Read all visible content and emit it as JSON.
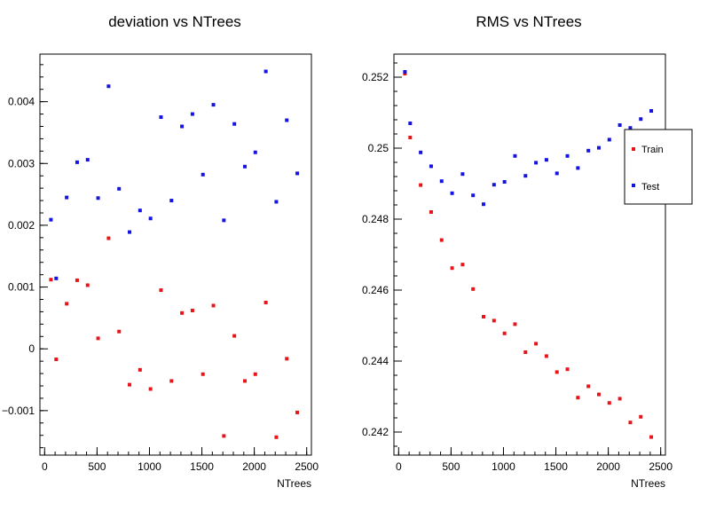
{
  "chart_data": [
    {
      "type": "scatter",
      "title": "deviation vs NTrees",
      "xlabel": "NTrees",
      "ylabel": "",
      "xlim": [
        -45,
        2545
      ],
      "ylim": [
        -0.00172,
        0.00477
      ],
      "xticks": [
        0,
        500,
        1000,
        1500,
        2000,
        2500
      ],
      "xtick_labels": [
        "0",
        "500",
        "1000",
        "1500",
        "2000",
        "2500"
      ],
      "yticks": [
        -0.001,
        0,
        0.001,
        0.002,
        0.003,
        0.004
      ],
      "ytick_labels": [
        "−0.001",
        "0",
        "0.001",
        "0.002",
        "0.003",
        "0.004"
      ],
      "legend": false,
      "grid": false,
      "series": [
        {
          "name": "Train",
          "color": "#e8141a",
          "x": [
            60,
            110,
            210,
            310,
            410,
            510,
            610,
            710,
            810,
            910,
            1010,
            1110,
            1210,
            1310,
            1410,
            1510,
            1610,
            1710,
            1810,
            1910,
            2010,
            2110,
            2210,
            2310,
            2410
          ],
          "values": [
            0.00112,
            -0.00017,
            0.00073,
            0.00111,
            0.00103,
            0.00017,
            0.00179,
            0.00028,
            -0.00058,
            -0.00034,
            -0.00065,
            0.00095,
            -0.00052,
            0.00058,
            0.00062,
            -0.00041,
            0.0007,
            -0.00141,
            0.00021,
            -0.00052,
            -0.00041,
            0.00075,
            -0.00143,
            -0.00016,
            -0.00103
          ]
        },
        {
          "name": "Test",
          "color": "#1414e0",
          "x": [
            60,
            110,
            210,
            310,
            410,
            510,
            610,
            710,
            810,
            910,
            1010,
            1110,
            1210,
            1310,
            1410,
            1510,
            1610,
            1710,
            1810,
            1910,
            2010,
            2110,
            2210,
            2310,
            2410
          ],
          "values": [
            0.00209,
            0.00114,
            0.00245,
            0.00302,
            0.00306,
            0.00244,
            0.00425,
            0.00259,
            0.00189,
            0.00224,
            0.00211,
            0.00375,
            0.0024,
            0.0036,
            0.0038,
            0.00282,
            0.00395,
            0.00208,
            0.00364,
            0.00295,
            0.00318,
            0.00449,
            0.00238,
            0.0037,
            0.00284
          ]
        }
      ]
    },
    {
      "type": "scatter",
      "title": "RMS vs NTrees",
      "xlabel": "NTrees",
      "ylabel": "",
      "xlim": [
        -45,
        2545
      ],
      "ylim": [
        0.24135,
        0.25265
      ],
      "xticks": [
        0,
        500,
        1000,
        1500,
        2000,
        2500
      ],
      "xtick_labels": [
        "0",
        "500",
        "1000",
        "1500",
        "2000",
        "2500"
      ],
      "yticks": [
        0.242,
        0.244,
        0.246,
        0.248,
        0.25,
        0.252
      ],
      "ytick_labels": [
        "0.242",
        "0.244",
        "0.246",
        "0.248",
        "0.25",
        "0.252"
      ],
      "legend": true,
      "legend_position": "top-right",
      "grid": false,
      "series": [
        {
          "name": "Train",
          "color": "#e8141a",
          "x": [
            60,
            110,
            210,
            310,
            410,
            510,
            610,
            710,
            810,
            910,
            1010,
            1110,
            1210,
            1310,
            1410,
            1510,
            1610,
            1710,
            1810,
            1910,
            2010,
            2110,
            2210,
            2310,
            2410
          ],
          "values": [
            0.2521,
            0.2503,
            0.24896,
            0.2482,
            0.24741,
            0.24662,
            0.24672,
            0.24603,
            0.24525,
            0.24514,
            0.24478,
            0.24504,
            0.24425,
            0.24449,
            0.24414,
            0.24369,
            0.24377,
            0.24297,
            0.24329,
            0.24306,
            0.24282,
            0.24294,
            0.24227,
            0.24243,
            0.24186
          ]
        },
        {
          "name": "Test",
          "color": "#1414e0",
          "x": [
            60,
            110,
            210,
            310,
            410,
            510,
            610,
            710,
            810,
            910,
            1010,
            1110,
            1210,
            1310,
            1410,
            1510,
            1610,
            1710,
            1810,
            1910,
            2010,
            2110,
            2210,
            2310,
            2410
          ],
          "values": [
            0.25215,
            0.2507,
            0.24988,
            0.24949,
            0.24907,
            0.24873,
            0.24927,
            0.24867,
            0.24842,
            0.24897,
            0.24905,
            0.24978,
            0.24922,
            0.24959,
            0.24967,
            0.24929,
            0.24978,
            0.24944,
            0.24993,
            0.25001,
            0.25024,
            0.25065,
            0.25057,
            0.25082,
            0.25105
          ]
        }
      ]
    }
  ]
}
